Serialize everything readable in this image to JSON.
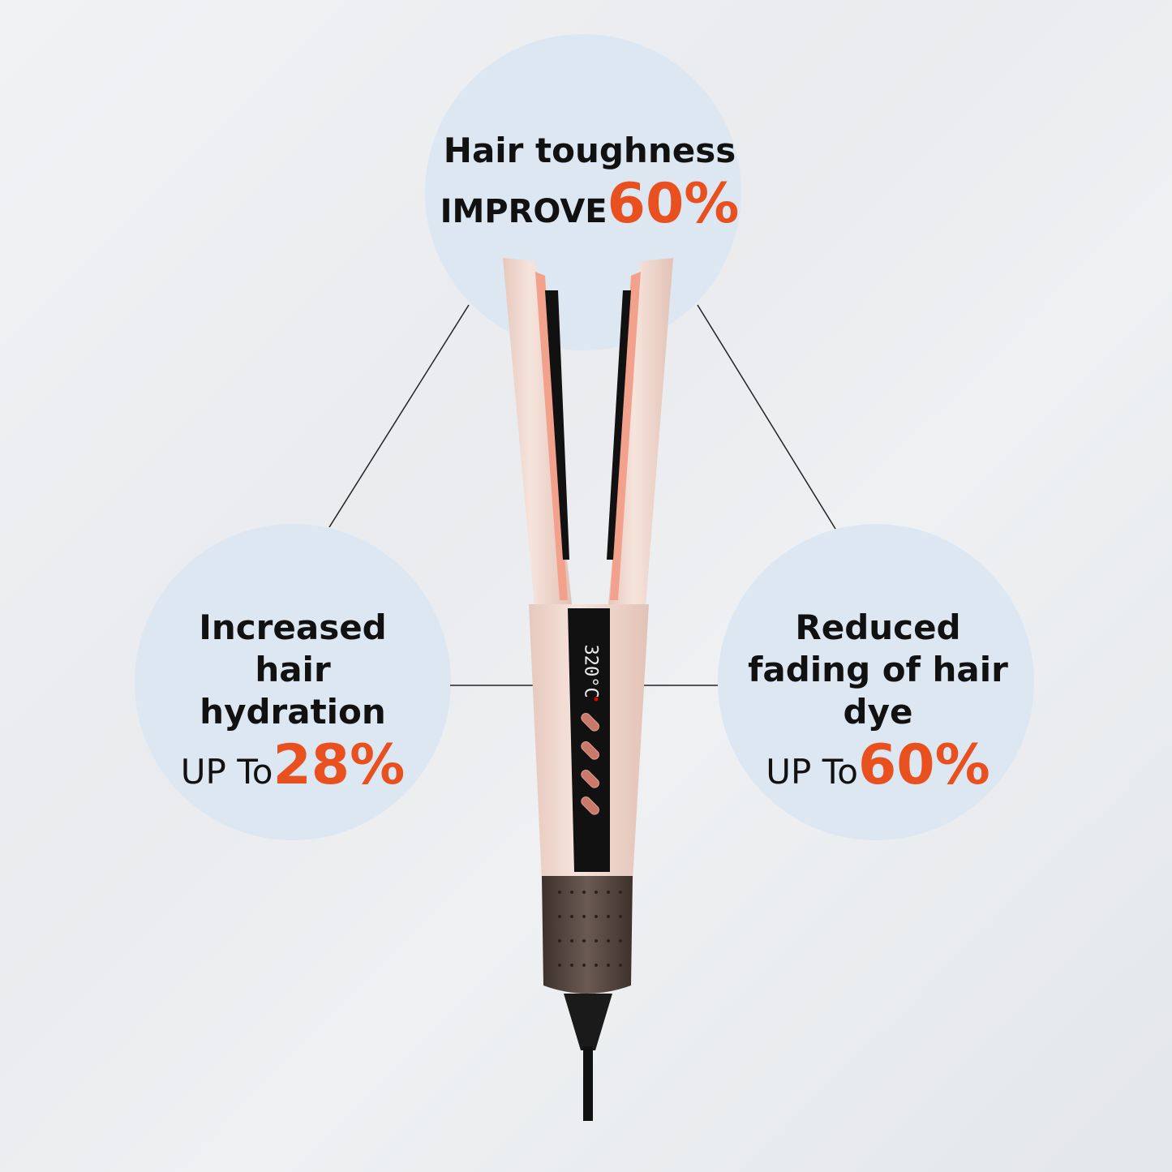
{
  "features": [
    {
      "title": "Hair toughness",
      "prefix": "IMPROVE",
      "value": "60%"
    },
    {
      "title": "Increased hair hydration",
      "prefix": "UP To",
      "value": "28%"
    },
    {
      "title": "Reduced fading of hair dye",
      "prefix": "UP To",
      "value": "60%"
    }
  ],
  "device": {
    "display": "320°C"
  },
  "colors": {
    "accent": "#e8511f",
    "bubble": "#dce7f2",
    "body": "#f1d8cf",
    "plate": "#f2a28c",
    "grip": "#5a4a44"
  }
}
